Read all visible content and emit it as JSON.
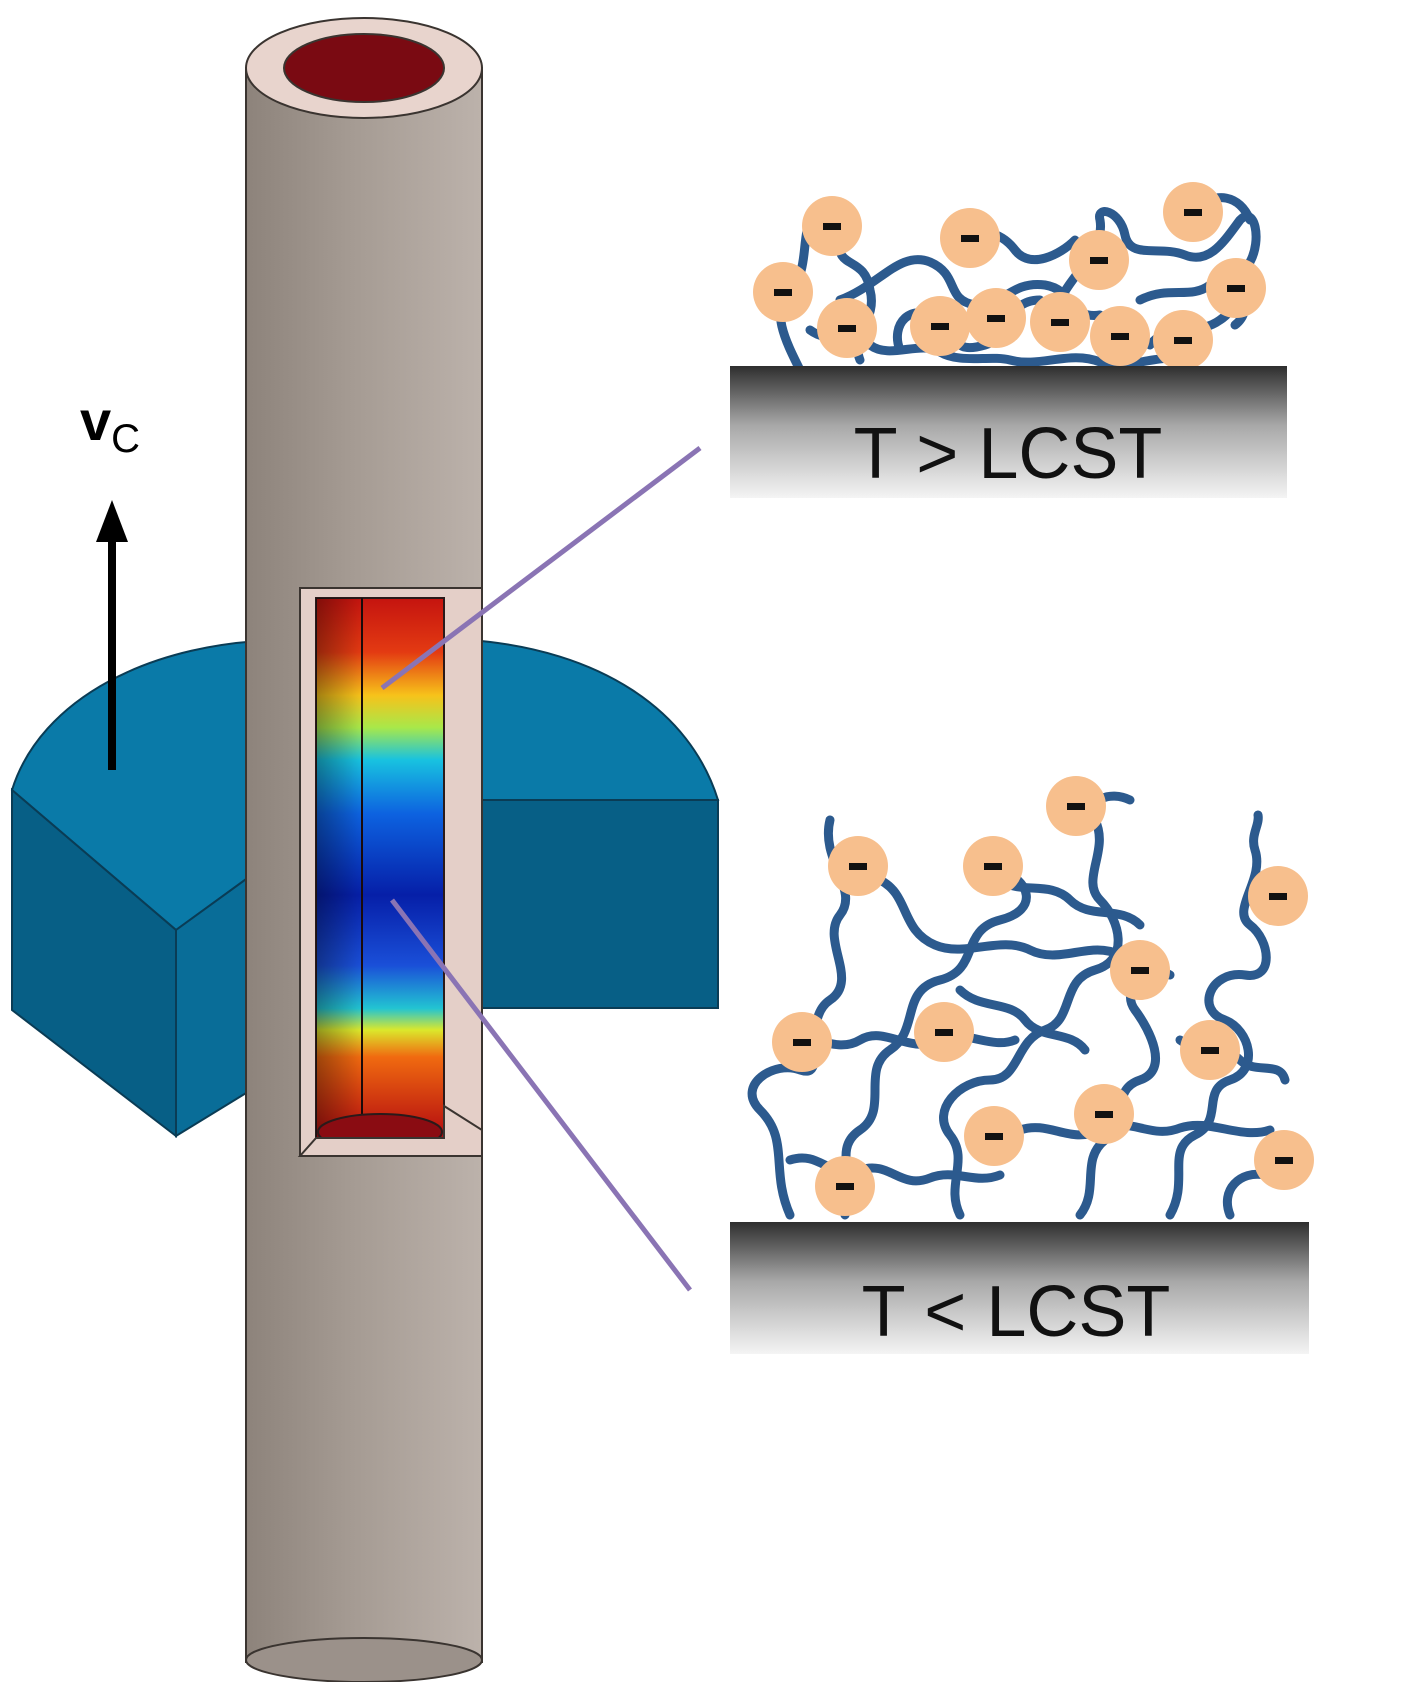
{
  "velocity_label": {
    "main": "v",
    "subscript": "C"
  },
  "upper_panel": {
    "label": "T > LCST"
  },
  "lower_panel": {
    "label": "T < LCST"
  },
  "charge_symbol": "-",
  "colors": {
    "tube": "#a49a92",
    "tube_inner_wall": "#e4cfc8",
    "tube_bore": "#7a0a12",
    "heater_top": "#0a7aa8",
    "heater_side": "#075f86",
    "polymer": "#2c5a8e",
    "particle": "#f7bf8d",
    "leader_line": "#8a74b4",
    "substrate_dark": "#2e2e2e",
    "substrate_light": "#f2f2f2"
  }
}
